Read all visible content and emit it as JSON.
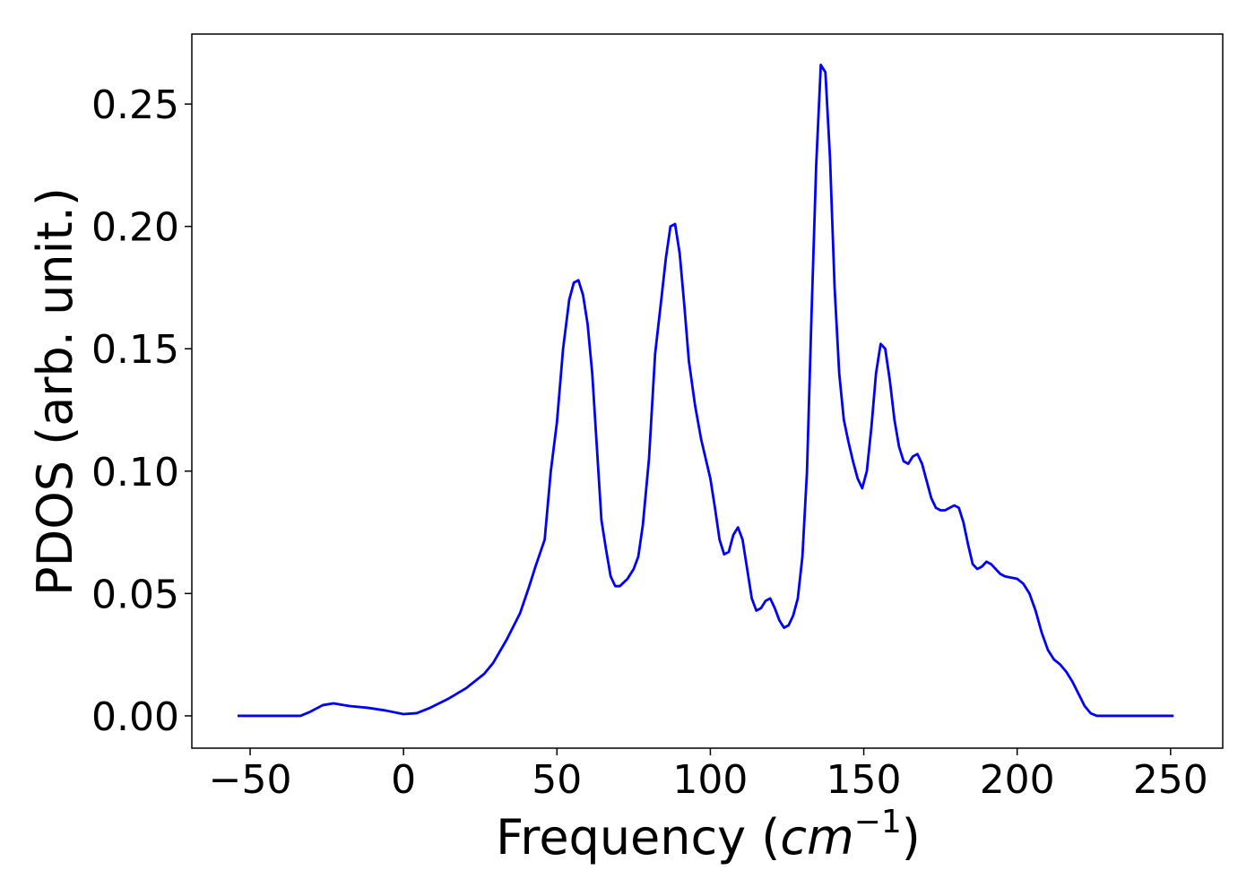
{
  "chart_data": {
    "type": "line",
    "xlabel": [
      "Frequency (",
      "cm",
      "−1",
      ")"
    ],
    "ylabel": "PDOS (arb. unit.)",
    "color": "#0000ff",
    "xlim": [
      -69,
      267
    ],
    "ylim": [
      -0.0132,
      0.2786
    ],
    "xticks": [
      {
        "value": -50,
        "label": "−50"
      },
      0,
      50,
      100,
      150,
      200,
      250
    ],
    "yticks": [
      {
        "value": 0,
        "label": "0.00"
      },
      {
        "value": 0.05,
        "label": "0.05"
      },
      {
        "value": 0.1,
        "label": "0.10"
      },
      {
        "value": 0.15,
        "label": "0.15"
      },
      {
        "value": 0.2,
        "label": "0.20"
      },
      {
        "value": 0.25,
        "label": "0.25"
      }
    ],
    "grid": false,
    "x": [
      -54.1,
      -33.6,
      -30.7,
      -26.3,
      -22.8,
      -17.6,
      -11.7,
      -5.9,
      0,
      4.3,
      8.7,
      14.6,
      20.4,
      26.3,
      29.2,
      33.6,
      38,
      40.9,
      43,
      46,
      48,
      50,
      52,
      54,
      55.5,
      57,
      58.5,
      60,
      61.5,
      63,
      64.5,
      66,
      67.5,
      69,
      70.5,
      73,
      75,
      76.5,
      78,
      80,
      82,
      84,
      85.5,
      87,
      88.5,
      90,
      91.5,
      93,
      95,
      97,
      100,
      101.5,
      103,
      104.5,
      106,
      107.5,
      109,
      110.5,
      112,
      113.5,
      115,
      116.5,
      118,
      119.5,
      121,
      122.5,
      124,
      125.5,
      127,
      128.5,
      130,
      131.5,
      133,
      134.5,
      136,
      137.5,
      139,
      140.5,
      142,
      143.5,
      145,
      146.5,
      148,
      149.5,
      151,
      152.5,
      154,
      155.5,
      157,
      158.5,
      160,
      161.5,
      163,
      164.5,
      166,
      167.5,
      169,
      170.5,
      172,
      173.5,
      175,
      176.5,
      178,
      179.5,
      181,
      182.5,
      184,
      185.5,
      187,
      188.5,
      190,
      191.5,
      193,
      194.5,
      196,
      198,
      200,
      202,
      204,
      206,
      208,
      210,
      212,
      214,
      216,
      218,
      220,
      222,
      224,
      226,
      251
    ],
    "values": [
      0,
      0,
      0.0015,
      0.0044,
      0.0051,
      0.004,
      0.0033,
      0.0022,
      0.0007,
      0.0011,
      0.0033,
      0.007,
      0.0113,
      0.0172,
      0.0216,
      0.0311,
      0.042,
      0.0527,
      0.061,
      0.072,
      0.1,
      0.12,
      0.15,
      0.17,
      0.177,
      0.178,
      0.172,
      0.16,
      0.14,
      0.11,
      0.08,
      0.068,
      0.057,
      0.053,
      0.053,
      0.056,
      0.06,
      0.065,
      0.078,
      0.105,
      0.148,
      0.17,
      0.187,
      0.2,
      0.201,
      0.189,
      0.168,
      0.145,
      0.127,
      0.113,
      0.097,
      0.085,
      0.072,
      0.066,
      0.067,
      0.074,
      0.077,
      0.072,
      0.06,
      0.048,
      0.043,
      0.044,
      0.047,
      0.048,
      0.044,
      0.039,
      0.036,
      0.037,
      0.041,
      0.048,
      0.065,
      0.1,
      0.165,
      0.225,
      0.266,
      0.263,
      0.228,
      0.175,
      0.14,
      0.121,
      0.112,
      0.104,
      0.097,
      0.093,
      0.1,
      0.118,
      0.14,
      0.152,
      0.15,
      0.137,
      0.121,
      0.11,
      0.104,
      0.103,
      0.106,
      0.107,
      0.103,
      0.096,
      0.089,
      0.085,
      0.084,
      0.084,
      0.085,
      0.086,
      0.085,
      0.079,
      0.07,
      0.062,
      0.06,
      0.061,
      0.063,
      0.062,
      0.06,
      0.058,
      0.057,
      0.0565,
      0.056,
      0.054,
      0.05,
      0.043,
      0.034,
      0.027,
      0.023,
      0.021,
      0.018,
      0.014,
      0.009,
      0.004,
      0.001,
      0,
      0
    ]
  }
}
